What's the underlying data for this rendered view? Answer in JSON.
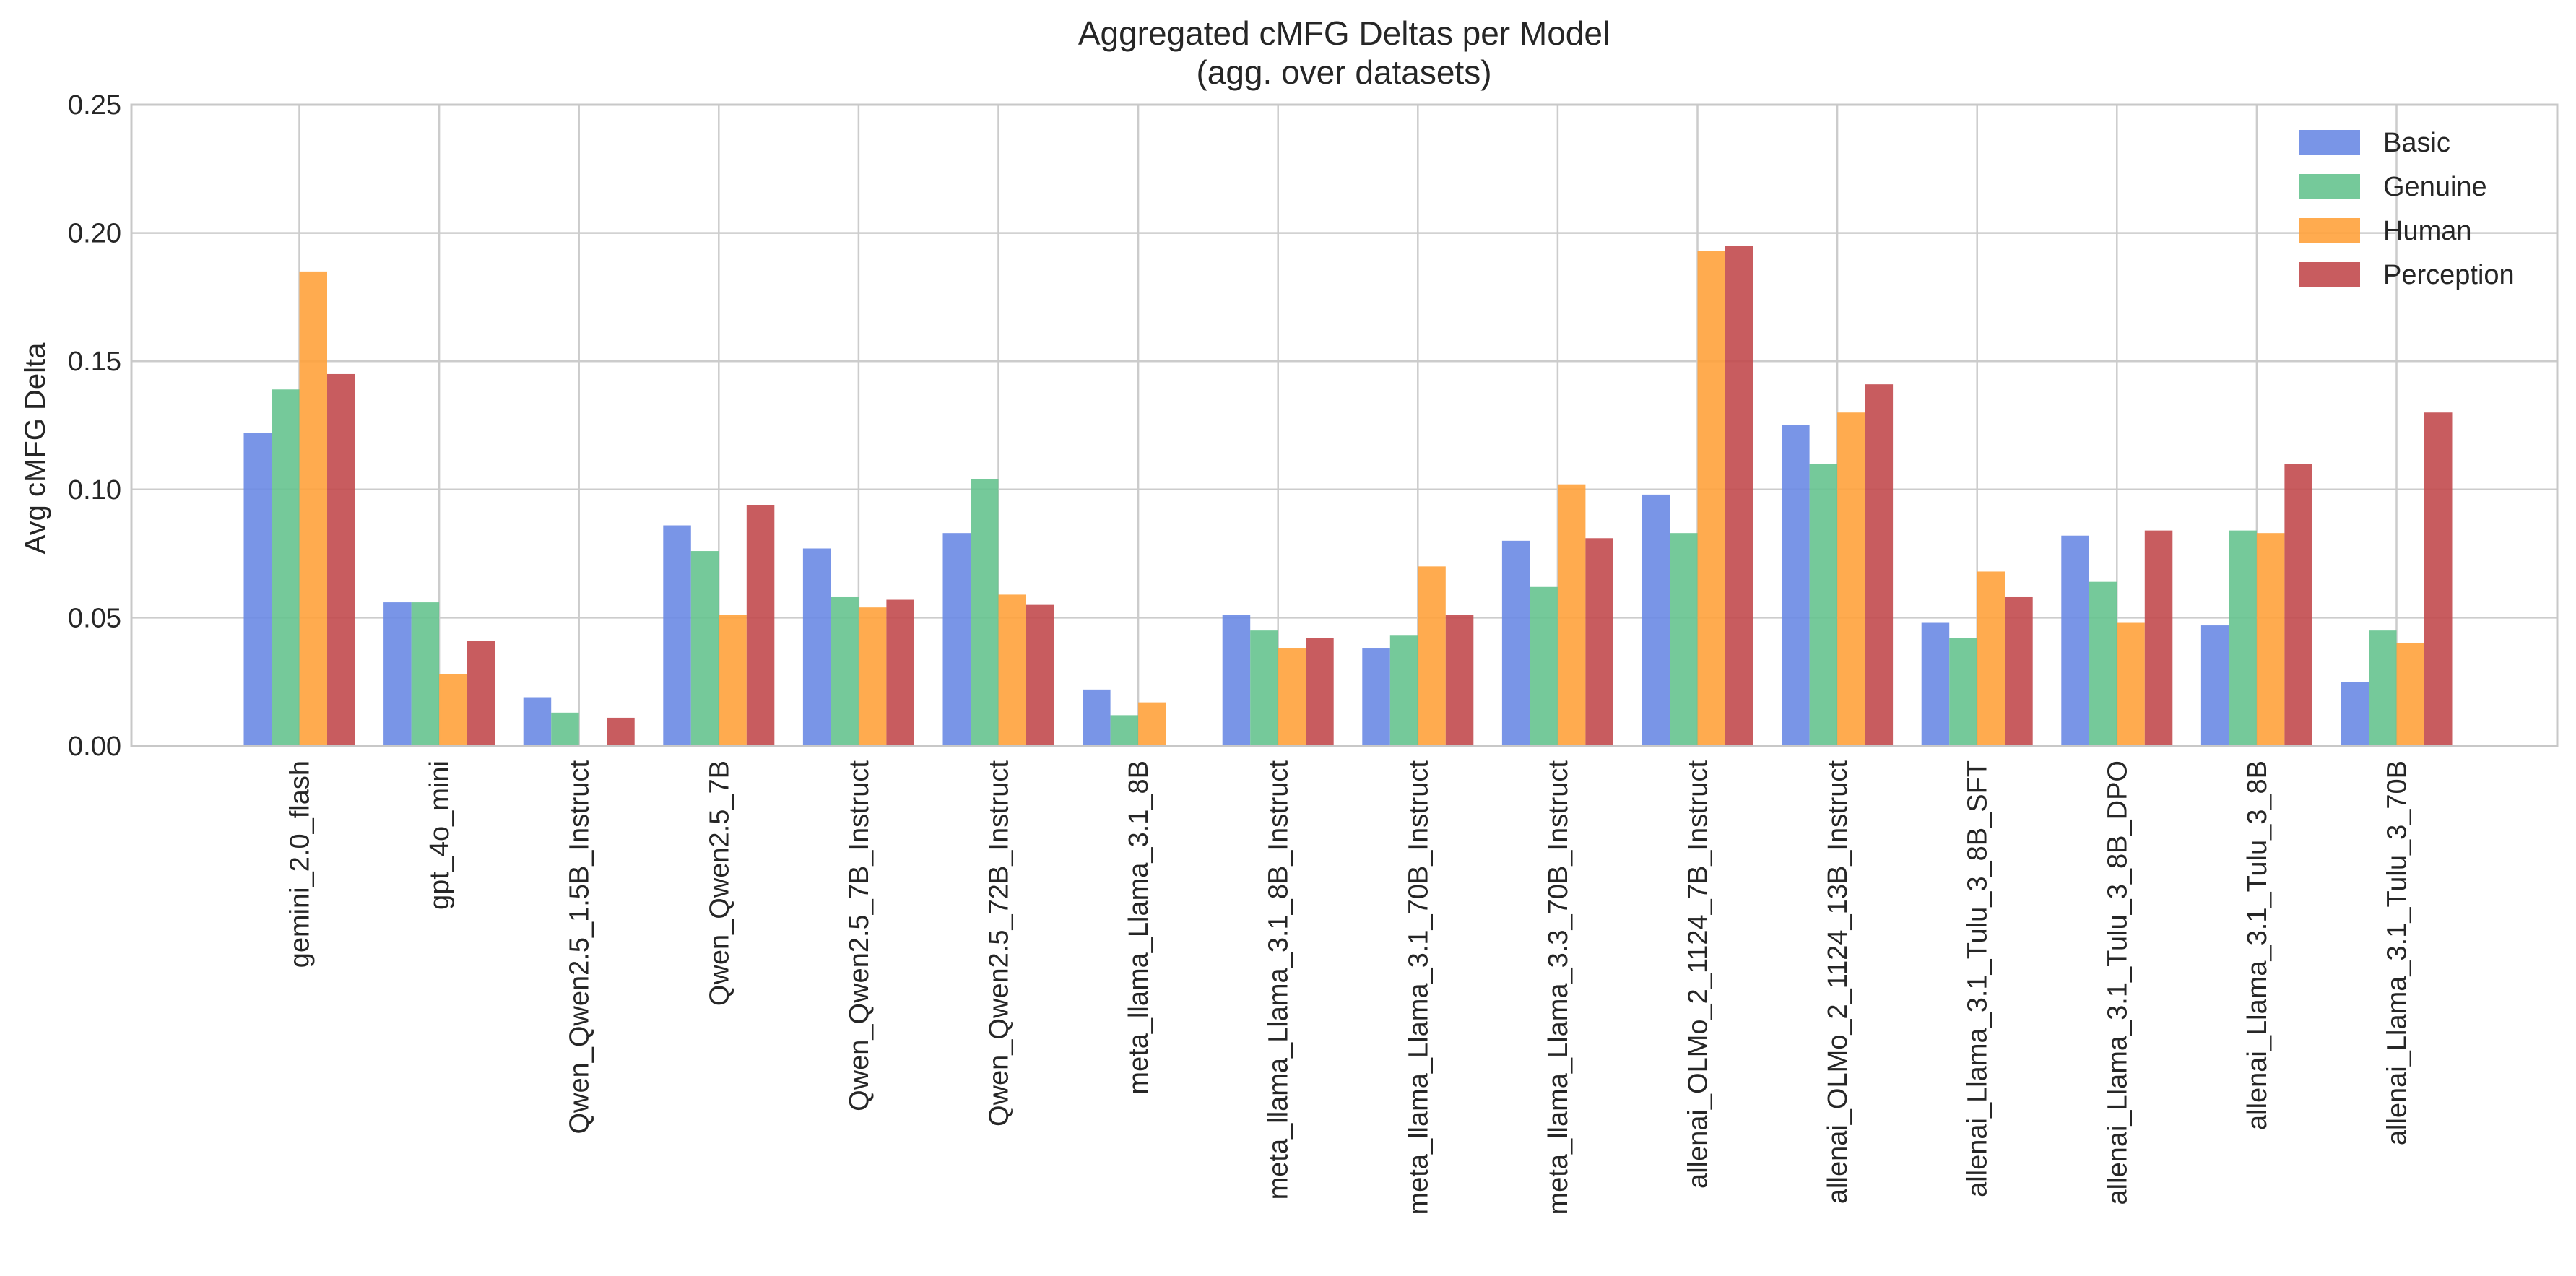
{
  "chart_data": {
    "type": "bar",
    "title": "Aggregated cMFG Deltas per Model",
    "subtitle": "(agg. over datasets)",
    "xlabel": "",
    "ylabel": "Avg cMFG Delta",
    "ylim": [
      0,
      0.25
    ],
    "yticks": [
      "0.00",
      "0.05",
      "0.10",
      "0.15",
      "0.20",
      "0.25"
    ],
    "grid": true,
    "legend_position": "top-right",
    "categories": [
      "gemini_2.0_flash",
      "gpt_4o_mini",
      "Qwen_Qwen2.5_1.5B_Instruct",
      "Qwen_Qwen2.5_7B",
      "Qwen_Qwen2.5_7B_Instruct",
      "Qwen_Qwen2.5_72B_Instruct",
      "meta_llama_Llama_3.1_8B",
      "meta_llama_Llama_3.1_8B_Instruct",
      "meta_llama_Llama_3.1_70B_Instruct",
      "meta_llama_Llama_3.3_70B_Instruct",
      "allenai_OLMo_2_1124_7B_Instruct",
      "allenai_OLMo_2_1124_13B_Instruct",
      "allenai_Llama_3.1_Tulu_3_8B_SFT",
      "allenai_Llama_3.1_Tulu_3_8B_DPO",
      "allenai_Llama_3.1_Tulu_3_8B",
      "allenai_Llama_3.1_Tulu_3_70B"
    ],
    "series": [
      {
        "name": "Basic",
        "color": "#6a8ae4",
        "values": [
          0.122,
          0.056,
          0.019,
          0.086,
          0.077,
          0.083,
          0.022,
          0.051,
          0.038,
          0.08,
          0.098,
          0.125,
          0.048,
          0.082,
          0.047,
          0.025
        ]
      },
      {
        "name": "Genuine",
        "color": "#66c38f",
        "values": [
          0.139,
          0.056,
          0.013,
          0.076,
          0.058,
          0.104,
          0.012,
          0.045,
          0.043,
          0.062,
          0.083,
          0.11,
          0.042,
          0.064,
          0.084,
          0.045
        ]
      },
      {
        "name": "Human",
        "color": "#ffa23c",
        "values": [
          0.185,
          0.028,
          0.0,
          0.051,
          0.054,
          0.059,
          0.017,
          0.038,
          0.07,
          0.102,
          0.193,
          0.13,
          0.068,
          0.048,
          0.083,
          0.04
        ]
      },
      {
        "name": "Perception",
        "color": "#c24a4e",
        "values": [
          0.145,
          0.041,
          0.011,
          0.094,
          0.057,
          0.055,
          0.0,
          0.042,
          0.051,
          0.081,
          0.195,
          0.141,
          0.058,
          0.084,
          0.11,
          0.13
        ]
      }
    ]
  }
}
